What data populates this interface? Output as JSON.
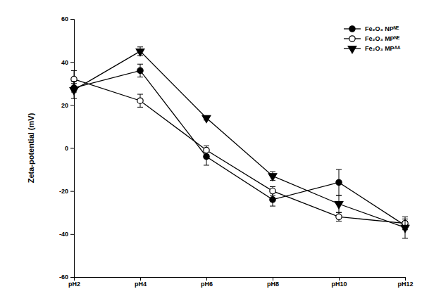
{
  "chart_data": {
    "type": "line",
    "y_label": "Zeta-potential (mV)",
    "categories": [
      "pH2",
      "pH4",
      "pH6",
      "pH8",
      "pH10",
      "pH12"
    ],
    "series": [
      {
        "name": "Fe₂O₃ NPᴺᴱ",
        "color": "#000000",
        "marker": "circle",
        "line_style": "solid",
        "values": [
          28,
          36,
          -4,
          -24,
          -16,
          -36
        ],
        "errors": [
          2,
          3,
          4,
          3,
          6,
          2
        ]
      },
      {
        "name": "Fe₂O₃ MPᴺᴱ",
        "color": "#000000",
        "marker": "open-circle",
        "line_style": "solid",
        "values": [
          32,
          22,
          -1,
          -20,
          -32,
          -35
        ],
        "errors": [
          4,
          3,
          2,
          2,
          2,
          2
        ]
      },
      {
        "name": "Fe₂O₃ MPᴬᴬ",
        "color": "#000000",
        "marker": "triangle-down",
        "line_style": "solid",
        "values": [
          27,
          45,
          14,
          -13,
          -26,
          -37
        ],
        "errors": [
          4,
          2,
          1,
          2,
          4,
          5
        ]
      }
    ],
    "ylim": [
      -60,
      60
    ],
    "yticks": [
      -60,
      -40,
      -20,
      0,
      20,
      40,
      60
    ],
    "grid": false,
    "legend": "upper right"
  }
}
